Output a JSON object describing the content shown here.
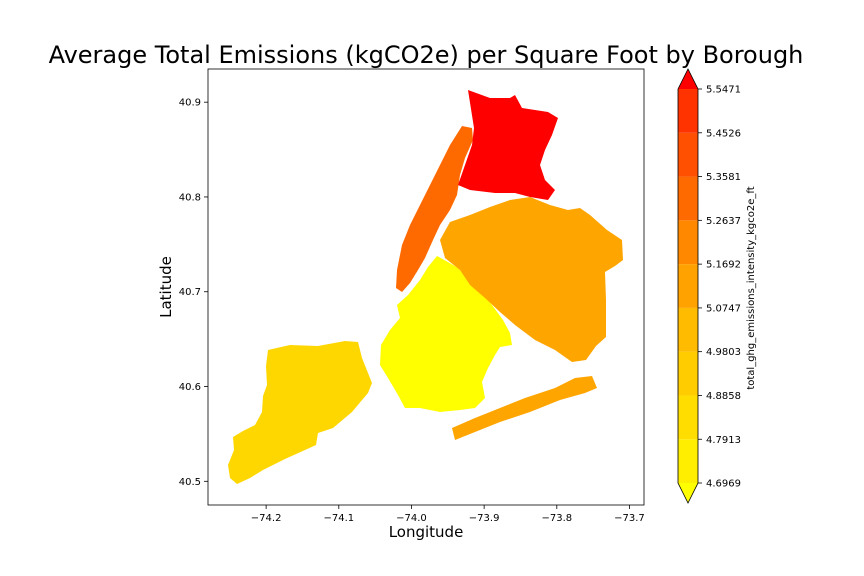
{
  "chart_data": {
    "type": "choropleth",
    "title": "Average Total Emissions (kgCO2e) per Square Foot by Borough",
    "xlabel": "Longitude",
    "ylabel": "Latitude",
    "xlim": [
      -74.28,
      -73.68
    ],
    "ylim": [
      40.475,
      40.935
    ],
    "x_ticks": [
      -74.2,
      -74.1,
      -74.0,
      -73.9,
      -73.8,
      -73.7
    ],
    "x_tick_labels": [
      "−74.2",
      "−74.1",
      "−74.0",
      "−73.9",
      "−73.8",
      "−73.7"
    ],
    "y_ticks": [
      40.5,
      40.6,
      40.7,
      40.8,
      40.9
    ],
    "y_tick_labels": [
      "40.5",
      "40.6",
      "40.7",
      "40.8",
      "40.9"
    ],
    "regions": [
      {
        "color": "#ffd700"
      },
      {
        "color": "#ffff00"
      },
      {
        "color": "#ffa500"
      },
      {
        "color": "#ff6a00"
      },
      {
        "color": "#ff0000"
      }
    ],
    "colorbar": {
      "label": "total_ghg_emissions_intensity_kgco2e_ft",
      "levels": [
        4.6969,
        4.7913,
        4.8858,
        4.9803,
        5.0747,
        5.1692,
        5.2637,
        5.3581,
        5.4526,
        5.5471
      ],
      "level_labels": [
        "4.6969",
        "4.7913",
        "4.8858",
        "4.9803",
        "5.0747",
        "5.1692",
        "5.2637",
        "5.3581",
        "5.4526",
        "5.5471"
      ],
      "colors": [
        "#ffee00",
        "#ffdd00",
        "#ffcc00",
        "#ffbb00",
        "#ffa200",
        "#ff8800",
        "#ff6a00",
        "#ff4f00",
        "#ff3300",
        "#ff1100"
      ],
      "under_color": "#ffff00",
      "over_color": "#ff0000"
    }
  }
}
